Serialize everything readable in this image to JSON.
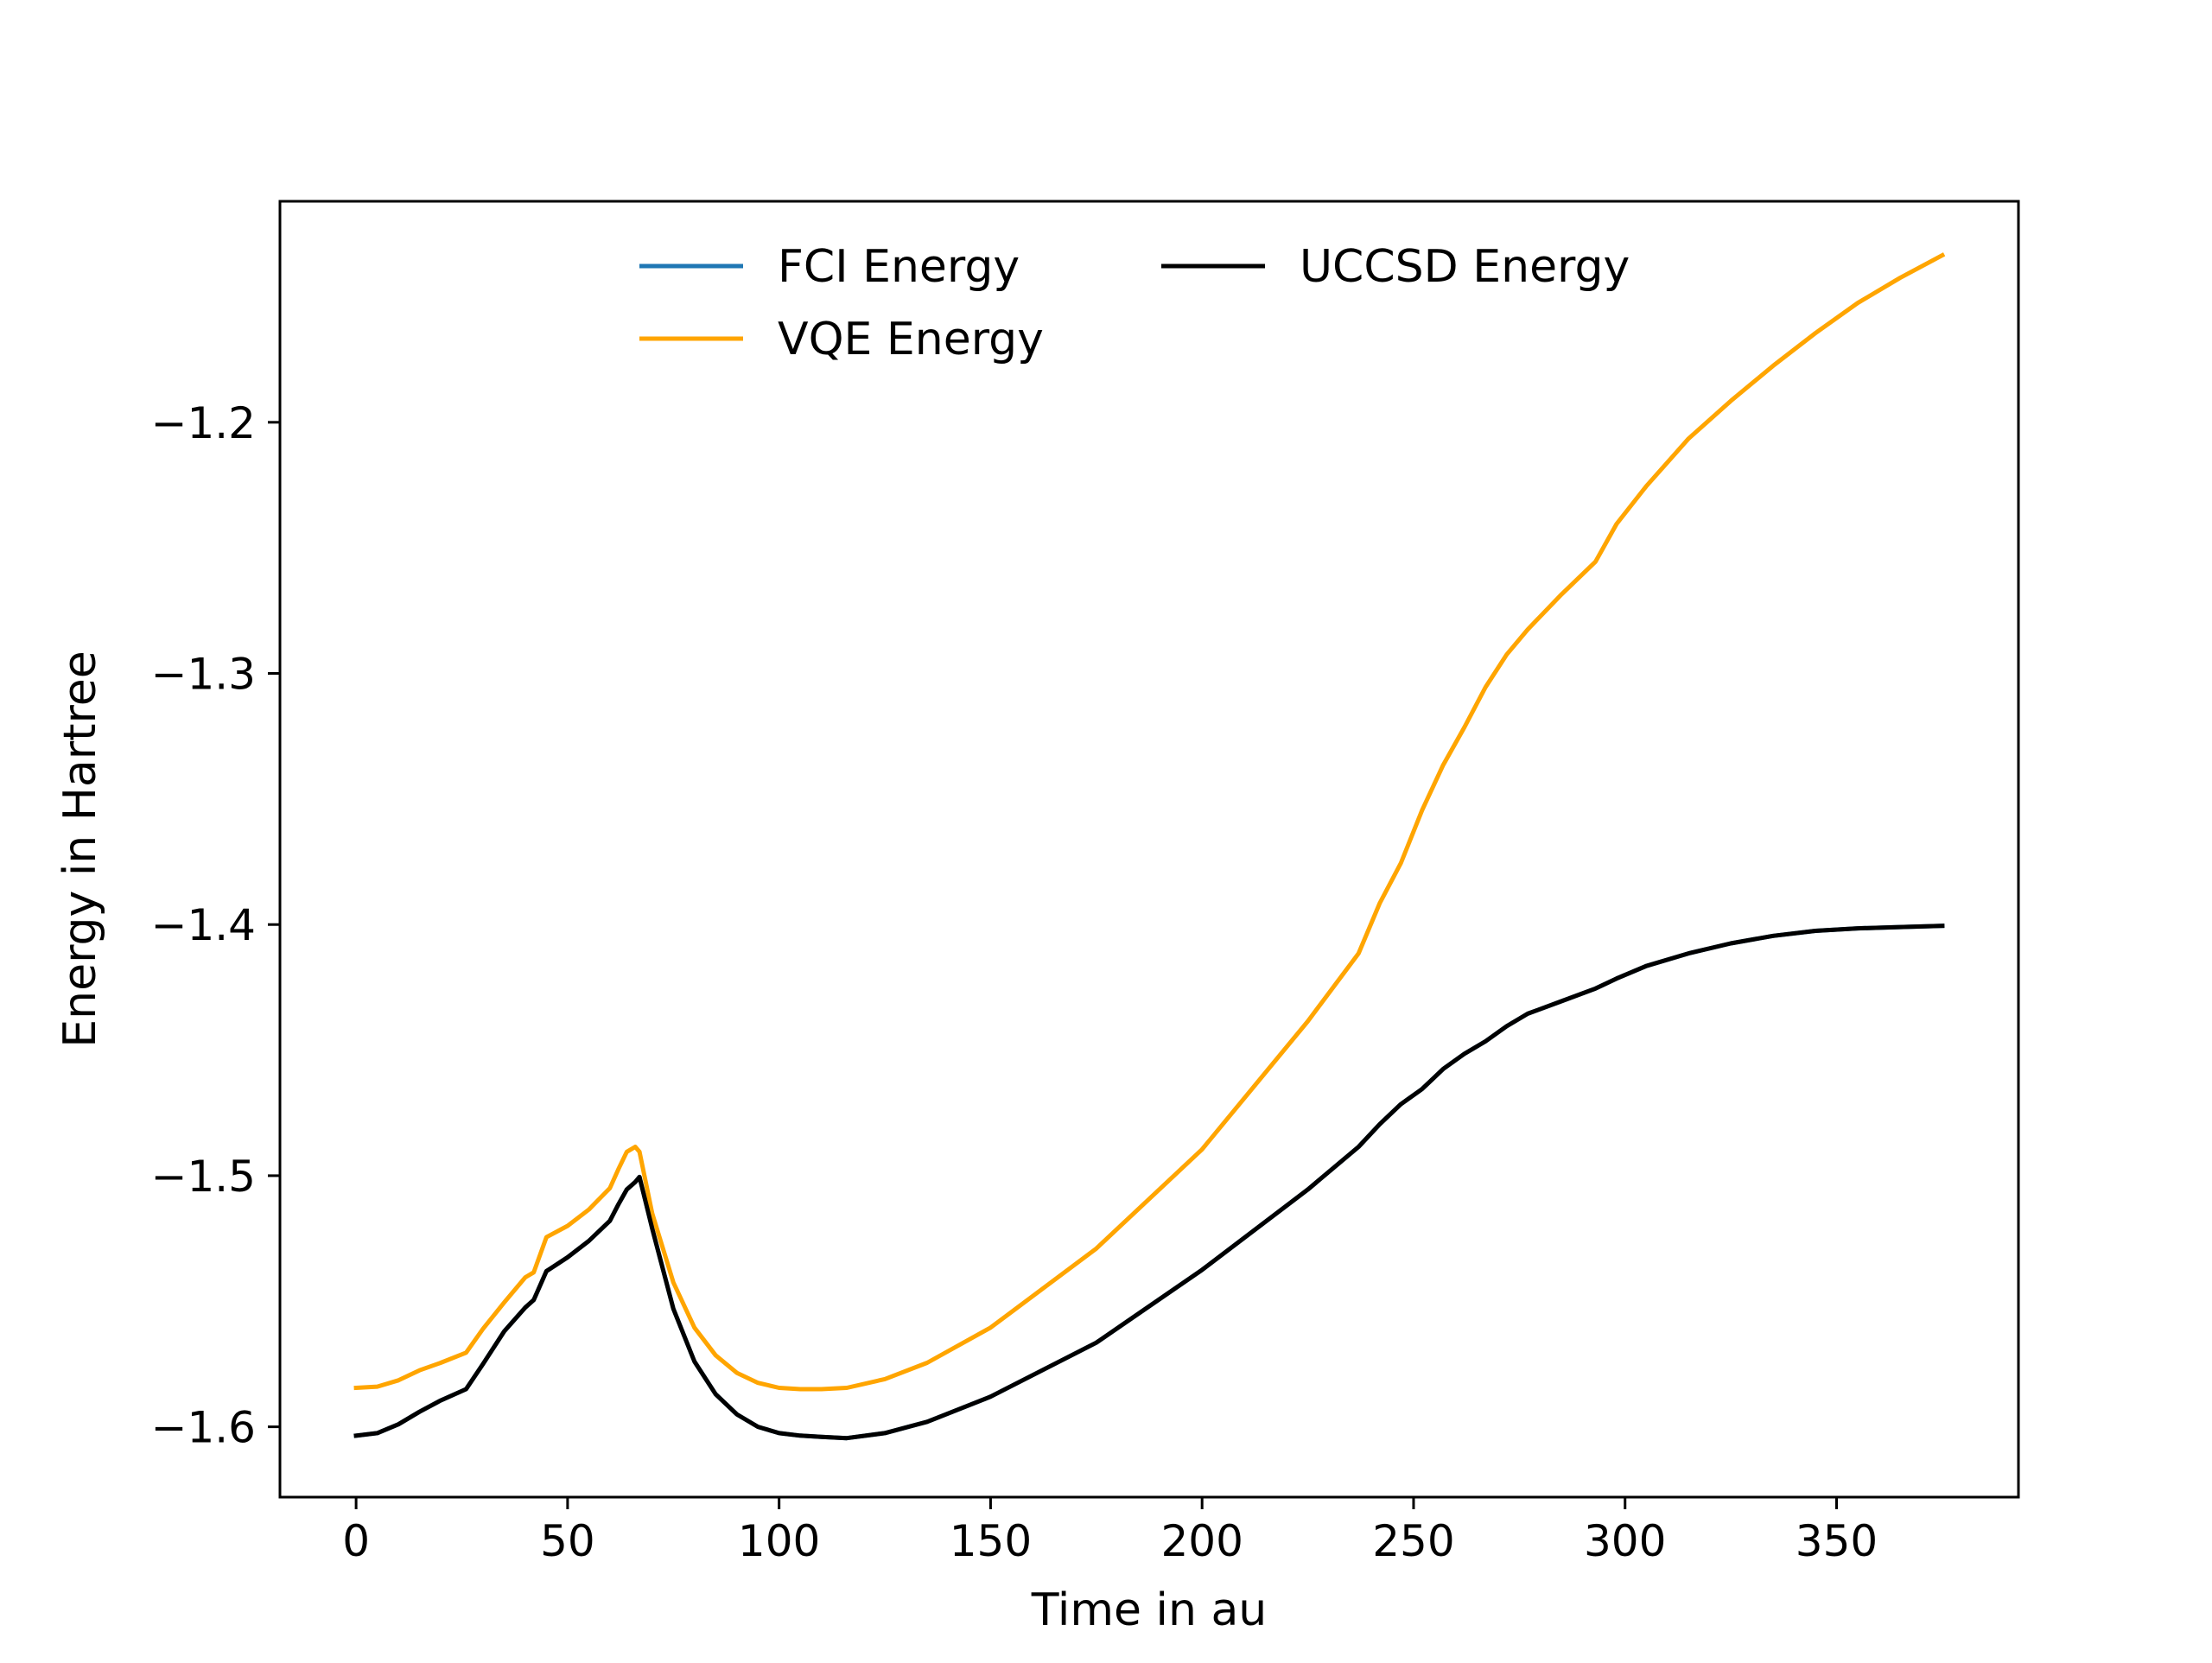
{
  "chart_data": {
    "type": "line",
    "title": "",
    "xlabel": "Time in au",
    "ylabel": "Energy in Hartree",
    "xlim": [
      -18,
      393
    ],
    "ylim": [
      -1.628,
      -1.112
    ],
    "xticks": [
      0,
      50,
      100,
      150,
      200,
      250,
      300,
      350
    ],
    "xtick_labels": [
      "0",
      "50",
      "100",
      "150",
      "200",
      "250",
      "300",
      "350"
    ],
    "yticks": [
      -1.6,
      -1.5,
      -1.4,
      -1.3,
      -1.2
    ],
    "ytick_labels": [
      "−1.6",
      "−1.5",
      "−1.4",
      "−1.3",
      "−1.2"
    ],
    "grid": false,
    "legend": {
      "placement": "upper-center",
      "columns": 2
    },
    "series": [
      {
        "name": "FCI Energy",
        "color": "#1f77b4",
        "x": [
          0,
          5,
          10,
          15,
          20,
          26,
          30,
          35,
          40,
          42,
          45,
          50,
          55,
          60,
          62,
          64,
          66,
          67,
          70,
          75,
          80,
          85,
          90,
          95,
          100,
          105,
          110,
          116,
          125,
          135,
          150,
          175,
          200,
          225,
          237,
          242,
          247,
          252,
          257,
          262,
          267,
          272,
          277,
          285,
          293,
          298,
          305,
          315,
          325,
          335,
          345,
          355,
          365,
          375
        ],
        "y": [
          -1.6035,
          -1.6025,
          -1.599,
          -1.594,
          -1.5895,
          -1.585,
          -1.575,
          -1.562,
          -1.5525,
          -1.5495,
          -1.538,
          -1.5325,
          -1.526,
          -1.518,
          -1.5115,
          -1.5055,
          -1.5025,
          -1.5005,
          -1.521,
          -1.553,
          -1.574,
          -1.587,
          -1.595,
          -1.6,
          -1.6025,
          -1.6035,
          -1.604,
          -1.6045,
          -1.6025,
          -1.598,
          -1.588,
          -1.5665,
          -1.5375,
          -1.5055,
          -1.4885,
          -1.4795,
          -1.4715,
          -1.4655,
          -1.4575,
          -1.4515,
          -1.4465,
          -1.4405,
          -1.4355,
          -1.4305,
          -1.4255,
          -1.4215,
          -1.4165,
          -1.4115,
          -1.4075,
          -1.4045,
          -1.4025,
          -1.4015,
          -1.401,
          -1.4005
        ]
      },
      {
        "name": "VQE Energy",
        "color": "#ffa500",
        "x": [
          0,
          5,
          10,
          15,
          20,
          26,
          30,
          35,
          40,
          42,
          45,
          50,
          55,
          60,
          62,
          64,
          66,
          67,
          70,
          75,
          80,
          85,
          90,
          95,
          100,
          105,
          110,
          116,
          125,
          135,
          150,
          175,
          200,
          225,
          237,
          242,
          247,
          252,
          257,
          262,
          267,
          272,
          277,
          285,
          293,
          298,
          305,
          315,
          325,
          335,
          345,
          355,
          365,
          375
        ],
        "y": [
          -1.5845,
          -1.584,
          -1.5815,
          -1.5775,
          -1.5745,
          -1.5705,
          -1.561,
          -1.5505,
          -1.5405,
          -1.5385,
          -1.5245,
          -1.52,
          -1.5135,
          -1.505,
          -1.4975,
          -1.4905,
          -1.4885,
          -1.4905,
          -1.515,
          -1.5425,
          -1.5605,
          -1.5715,
          -1.5785,
          -1.5825,
          -1.5845,
          -1.585,
          -1.585,
          -1.5845,
          -1.581,
          -1.5745,
          -1.5605,
          -1.529,
          -1.4895,
          -1.4385,
          -1.4115,
          -1.3915,
          -1.3755,
          -1.3545,
          -1.3365,
          -1.3215,
          -1.3055,
          -1.2925,
          -1.2825,
          -1.2685,
          -1.2555,
          -1.2405,
          -1.2255,
          -1.2065,
          -1.1915,
          -1.1775,
          -1.1645,
          -1.1525,
          -1.1425,
          -1.1335
        ]
      },
      {
        "name": "UCCSD Energy",
        "color": "#000000",
        "x": [
          0,
          5,
          10,
          15,
          20,
          26,
          30,
          35,
          40,
          42,
          45,
          50,
          55,
          60,
          62,
          64,
          66,
          67,
          70,
          75,
          80,
          85,
          90,
          95,
          100,
          105,
          110,
          116,
          125,
          135,
          150,
          175,
          200,
          225,
          237,
          242,
          247,
          252,
          257,
          262,
          267,
          272,
          277,
          285,
          293,
          298,
          305,
          315,
          325,
          335,
          345,
          355,
          365,
          375
        ],
        "y": [
          -1.6035,
          -1.6025,
          -1.599,
          -1.594,
          -1.5895,
          -1.585,
          -1.575,
          -1.562,
          -1.5525,
          -1.5495,
          -1.538,
          -1.5325,
          -1.526,
          -1.518,
          -1.5115,
          -1.5055,
          -1.5025,
          -1.5005,
          -1.521,
          -1.553,
          -1.574,
          -1.587,
          -1.595,
          -1.6,
          -1.6025,
          -1.6035,
          -1.604,
          -1.6045,
          -1.6025,
          -1.598,
          -1.588,
          -1.5665,
          -1.5375,
          -1.5055,
          -1.4885,
          -1.4795,
          -1.4715,
          -1.4655,
          -1.4575,
          -1.4515,
          -1.4465,
          -1.4405,
          -1.4355,
          -1.4305,
          -1.4255,
          -1.4215,
          -1.4165,
          -1.4115,
          -1.4075,
          -1.4045,
          -1.4025,
          -1.4015,
          -1.401,
          -1.4005
        ]
      }
    ]
  }
}
